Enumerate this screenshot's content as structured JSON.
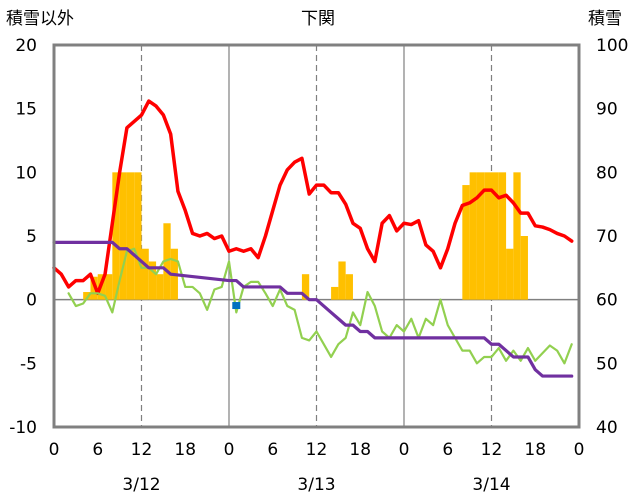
{
  "chart_data": {
    "type": "bar+line",
    "title": "下関",
    "left_axis_label": "積雪以外",
    "right_axis_label": "積雪",
    "left_ylim": [
      -10,
      20
    ],
    "left_yticks": [
      20,
      15,
      10,
      5,
      0,
      -5,
      -10
    ],
    "right_ylim": [
      40,
      100
    ],
    "right_yticks": [
      100,
      90,
      80,
      70,
      60,
      50,
      40
    ],
    "x_tick_labels": [
      "0",
      "6",
      "12",
      "18",
      "0",
      "6",
      "12",
      "18",
      "0",
      "6",
      "12",
      "18",
      "0"
    ],
    "date_labels": [
      "3/12",
      "3/13",
      "3/14"
    ],
    "grid": "dashed vertical lines at 12:00 of each day; solid day separators at 0:00",
    "colors": {
      "bars": "#FFC000",
      "red_line": "#FF0000",
      "green_line": "#92D050",
      "purple_line": "#7030A0",
      "blue_marker": "#0070C0",
      "frame": "#808080"
    },
    "hour_start": 0,
    "hour_end": 72,
    "bars": [
      {
        "hour": 4,
        "value": 0.6
      },
      {
        "hour": 5,
        "value": 1.8
      },
      {
        "hour": 6,
        "value": 2.0
      },
      {
        "hour": 7,
        "value": 2.0
      },
      {
        "hour": 8,
        "value": 10.0
      },
      {
        "hour": 9,
        "value": 10.0
      },
      {
        "hour": 10,
        "value": 10.0
      },
      {
        "hour": 11,
        "value": 10.0
      },
      {
        "hour": 12,
        "value": 4.0
      },
      {
        "hour": 13,
        "value": 3.0
      },
      {
        "hour": 14,
        "value": 2.0
      },
      {
        "hour": 15,
        "value": 6.0
      },
      {
        "hour": 16,
        "value": 4.0
      },
      {
        "hour": 34,
        "value": 2.0
      },
      {
        "hour": 38,
        "value": 1.0
      },
      {
        "hour": 39,
        "value": 3.0
      },
      {
        "hour": 40,
        "value": 2.0
      },
      {
        "hour": 56,
        "value": 9.0
      },
      {
        "hour": 57,
        "value": 10.0
      },
      {
        "hour": 58,
        "value": 10.0
      },
      {
        "hour": 59,
        "value": 10.0
      },
      {
        "hour": 60,
        "value": 10.0
      },
      {
        "hour": 61,
        "value": 10.0
      },
      {
        "hour": 62,
        "value": 4.0
      },
      {
        "hour": 63,
        "value": 10.0
      },
      {
        "hour": 64,
        "value": 5.0
      }
    ],
    "series": [
      {
        "axis": "left",
        "color": "#FF0000",
        "points": [
          [
            0,
            2.5
          ],
          [
            1,
            2
          ],
          [
            2,
            1
          ],
          [
            3,
            1.5
          ],
          [
            4,
            1.5
          ],
          [
            5,
            2
          ],
          [
            6,
            0.5
          ],
          [
            7,
            2
          ],
          [
            8,
            6
          ],
          [
            9,
            10
          ],
          [
            10,
            13.5
          ],
          [
            11,
            14
          ],
          [
            12,
            14.5
          ],
          [
            13,
            15.6
          ],
          [
            14,
            15.2
          ],
          [
            15,
            14.5
          ],
          [
            16,
            13
          ],
          [
            17,
            8.5
          ],
          [
            18,
            7
          ],
          [
            19,
            5.2
          ],
          [
            20,
            5
          ],
          [
            21,
            5.2
          ],
          [
            22,
            4.8
          ],
          [
            23,
            5
          ],
          [
            24,
            3.8
          ],
          [
            25,
            4
          ],
          [
            26,
            3.8
          ],
          [
            27,
            4
          ],
          [
            28,
            3.3
          ],
          [
            29,
            5
          ],
          [
            30,
            7
          ],
          [
            31,
            9
          ],
          [
            32,
            10.2
          ],
          [
            33,
            10.8
          ],
          [
            34,
            11.1
          ],
          [
            35,
            8.3
          ],
          [
            36,
            9
          ],
          [
            37,
            9
          ],
          [
            38,
            8.4
          ],
          [
            39,
            8.4
          ],
          [
            40,
            7.5
          ],
          [
            41,
            6
          ],
          [
            42,
            5.6
          ],
          [
            43,
            4
          ],
          [
            44,
            3
          ],
          [
            45,
            6
          ],
          [
            46,
            6.6
          ],
          [
            47,
            5.4
          ],
          [
            48,
            6
          ],
          [
            49,
            5.9
          ],
          [
            50,
            6.2
          ],
          [
            51,
            4.3
          ],
          [
            52,
            3.8
          ],
          [
            53,
            2.5
          ],
          [
            54,
            4
          ],
          [
            55,
            6
          ],
          [
            56,
            7.4
          ],
          [
            57,
            7.6
          ],
          [
            58,
            8
          ],
          [
            59,
            8.6
          ],
          [
            60,
            8.6
          ],
          [
            61,
            8
          ],
          [
            62,
            8.2
          ],
          [
            63,
            7.6
          ],
          [
            64,
            6.8
          ],
          [
            65,
            6.8
          ],
          [
            66,
            5.8
          ],
          [
            67,
            5.7
          ],
          [
            68,
            5.5
          ],
          [
            69,
            5.2
          ],
          [
            70,
            5
          ],
          [
            71,
            4.6
          ]
        ]
      },
      {
        "axis": "left",
        "color": "#92D050",
        "points": [
          [
            2,
            0.5
          ],
          [
            3,
            -0.5
          ],
          [
            4,
            -0.3
          ],
          [
            5,
            0.5
          ],
          [
            6,
            0.5
          ],
          [
            7,
            0.3
          ],
          [
            8,
            -1
          ],
          [
            9,
            1.5
          ],
          [
            10,
            3.8
          ],
          [
            11,
            4
          ],
          [
            12,
            2.5
          ],
          [
            13,
            2.5
          ],
          [
            14,
            2
          ],
          [
            15,
            3
          ],
          [
            16,
            3.2
          ],
          [
            17,
            3
          ],
          [
            18,
            1
          ],
          [
            19,
            1
          ],
          [
            20,
            0.5
          ],
          [
            21,
            -0.8
          ],
          [
            22,
            0.8
          ],
          [
            23,
            1
          ],
          [
            24,
            3
          ],
          [
            25,
            -1
          ],
          [
            26,
            1
          ],
          [
            27,
            1.4
          ],
          [
            28,
            1.4
          ],
          [
            29,
            0.5
          ],
          [
            30,
            -0.5
          ],
          [
            31,
            0.8
          ],
          [
            32,
            -0.5
          ],
          [
            33,
            -0.8
          ],
          [
            34,
            -3
          ],
          [
            35,
            -3.2
          ],
          [
            36,
            -2.5
          ],
          [
            37,
            -3.5
          ],
          [
            38,
            -4.5
          ],
          [
            39,
            -3.5
          ],
          [
            40,
            -3
          ],
          [
            41,
            -1
          ],
          [
            42,
            -2
          ],
          [
            43,
            0.6
          ],
          [
            44,
            -0.5
          ],
          [
            45,
            -2.5
          ],
          [
            46,
            -3
          ],
          [
            47,
            -2
          ],
          [
            48,
            -2.5
          ],
          [
            49,
            -1.5
          ],
          [
            50,
            -3
          ],
          [
            51,
            -1.5
          ],
          [
            52,
            -2
          ],
          [
            53,
            0
          ],
          [
            54,
            -2
          ],
          [
            55,
            -3
          ],
          [
            56,
            -4
          ],
          [
            57,
            -4
          ],
          [
            58,
            -5
          ],
          [
            59,
            -4.5
          ],
          [
            60,
            -4.5
          ],
          [
            61,
            -3.8
          ],
          [
            62,
            -4.8
          ],
          [
            63,
            -4
          ],
          [
            64,
            -4.8
          ],
          [
            65,
            -3.8
          ],
          [
            66,
            -4.8
          ],
          [
            67,
            -4.2
          ],
          [
            68,
            -3.6
          ],
          [
            69,
            -4
          ],
          [
            70,
            -5
          ],
          [
            71,
            -3.5
          ]
        ]
      },
      {
        "axis": "left",
        "color": "#7030A0",
        "points": [
          [
            0,
            4.5
          ],
          [
            8,
            4.5
          ],
          [
            9,
            4
          ],
          [
            10,
            4
          ],
          [
            11,
            3.5
          ],
          [
            12,
            3
          ],
          [
            13,
            2.5
          ],
          [
            15,
            2.5
          ],
          [
            16,
            2
          ],
          [
            24,
            1.5
          ],
          [
            25,
            1.5
          ],
          [
            26,
            1
          ],
          [
            31,
            1
          ],
          [
            32,
            0.5
          ],
          [
            34,
            0.5
          ],
          [
            35,
            0
          ],
          [
            36,
            0
          ],
          [
            37,
            -0.5
          ],
          [
            38,
            -1
          ],
          [
            39,
            -1.5
          ],
          [
            40,
            -2
          ],
          [
            41,
            -2
          ],
          [
            42,
            -2.5
          ],
          [
            43,
            -2.5
          ],
          [
            44,
            -3
          ],
          [
            59,
            -3
          ],
          [
            60,
            -3.5
          ],
          [
            61,
            -3.5
          ],
          [
            62,
            -4
          ],
          [
            63,
            -4.5
          ],
          [
            65,
            -4.5
          ],
          [
            66,
            -5.5
          ],
          [
            67,
            -6
          ],
          [
            71,
            -6
          ]
        ]
      }
    ],
    "marker": {
      "hour": 25,
      "value": -0.5
    }
  }
}
